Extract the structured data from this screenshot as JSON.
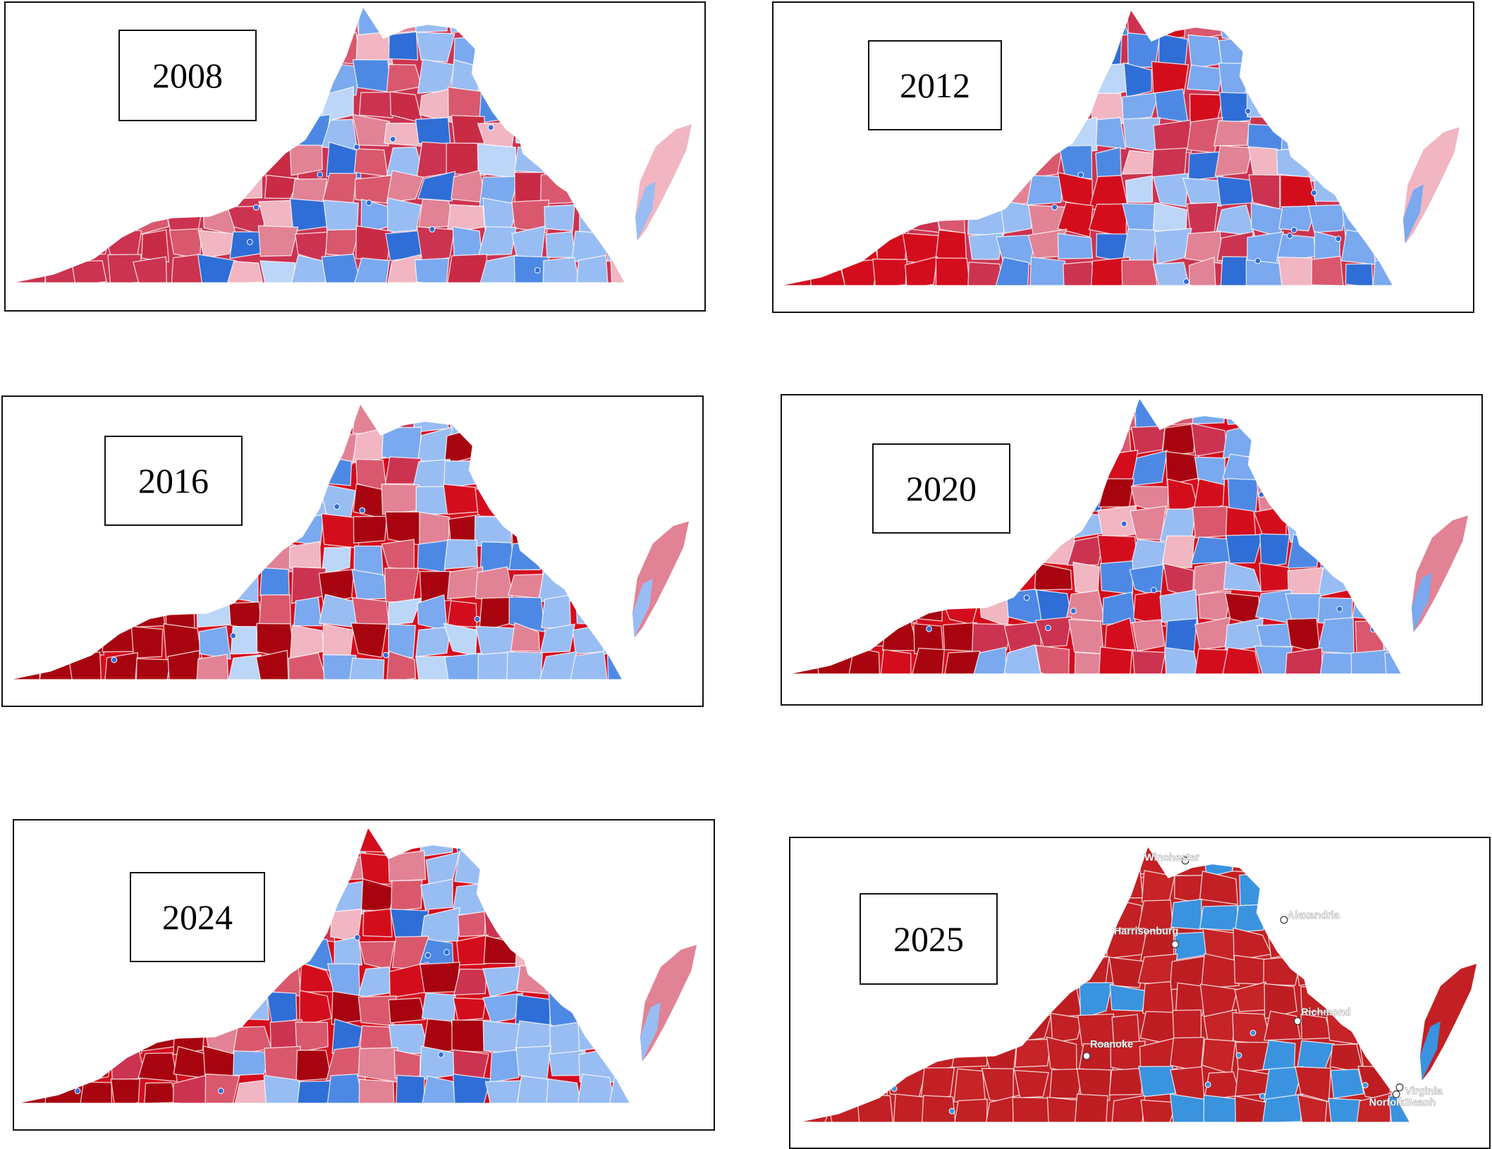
{
  "panels": [
    {
      "year": "2008",
      "palette": [
        "#cc3350",
        "#c92b45",
        "#d9586d",
        "#e28295",
        "#f1b6c1",
        "#98bdf3",
        "#7aa9ef",
        "#4d89e4",
        "#bcd6f7",
        "#2f6ed6"
      ],
      "east_color": "#98bdf3",
      "sw_color": "#cc3350"
    },
    {
      "year": "2012",
      "palette": [
        "#cc3350",
        "#d40d1d",
        "#d9586d",
        "#e28295",
        "#f1b6c1",
        "#98bdf3",
        "#7aa9ef",
        "#4d89e4",
        "#bcd6f7",
        "#2f6ed6"
      ],
      "east_color": "#7aa9ef",
      "sw_color": "#d40d1d"
    },
    {
      "year": "2016",
      "palette": [
        "#d40d1d",
        "#a80410",
        "#cc3350",
        "#d9586d",
        "#e28295",
        "#f1b6c1",
        "#98bdf3",
        "#7aa9ef",
        "#4d89e4",
        "#bcd6f7"
      ],
      "east_color": "#98bdf3",
      "sw_color": "#a80410"
    },
    {
      "year": "2020",
      "palette": [
        "#d40d1d",
        "#a80410",
        "#cc3350",
        "#d9586d",
        "#e28295",
        "#98bdf3",
        "#7aa9ef",
        "#4d89e4",
        "#2f6ed6",
        "#f1b6c1"
      ],
      "east_color": "#7aa9ef",
      "sw_color": "#a80410"
    },
    {
      "year": "2024",
      "palette": [
        "#d40d1d",
        "#a80410",
        "#cc3350",
        "#d9586d",
        "#e28295",
        "#f1b6c1",
        "#98bdf3",
        "#7aa9ef",
        "#4d89e4",
        "#2f6ed6"
      ],
      "east_color": "#98bdf3",
      "sw_color": "#a80410"
    },
    {
      "year": "2025",
      "palette": [
        "#c22024",
        "#be1e22",
        "#c62427",
        "#c22024",
        "#3a93df",
        "#c22024",
        "#be1e22",
        "#c62427",
        "#3a93df",
        "#c22024"
      ],
      "east_color": "#3a93df",
      "sw_color": "#c22024",
      "cities": [
        {
          "name": "Winchester"
        },
        {
          "name": "Alexandria"
        },
        {
          "name": "Harrisonburg"
        },
        {
          "name": "Richmond"
        },
        {
          "name": "Roanoke"
        },
        {
          "name": "Norfolk"
        },
        {
          "name": "Virginia"
        },
        {
          "name": "Beach"
        }
      ]
    }
  ]
}
